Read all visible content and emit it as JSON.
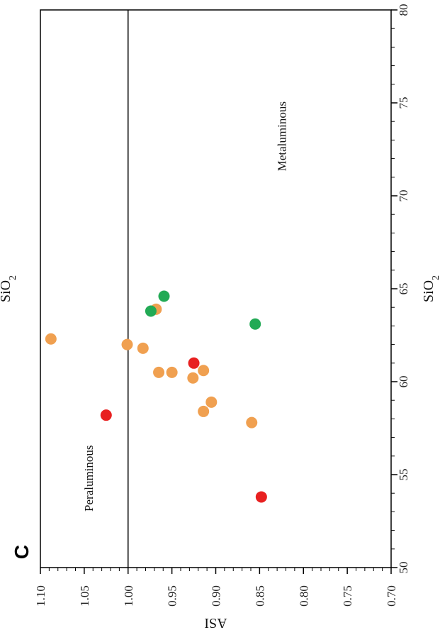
{
  "chart_data": {
    "type": "scatter",
    "panel_label": "C",
    "top_label": "SiO2",
    "xlabel": "SiO2",
    "ylabel": "ASI",
    "xlim": [
      50,
      80
    ],
    "ylim": [
      0.7,
      1.1
    ],
    "x_ticks": [
      50,
      55,
      60,
      65,
      70,
      75,
      80
    ],
    "y_ticks": [
      0.7,
      0.75,
      0.8,
      0.85,
      0.9,
      0.95,
      1.0,
      1.05,
      1.1
    ],
    "x_tick_labels": [
      "50",
      "55",
      "60",
      "65",
      "70",
      "75",
      "80"
    ],
    "y_tick_labels": [
      "0.70",
      "0.75",
      "0.80",
      "0.85",
      "0.90",
      "0.95",
      "1.00",
      "1.05",
      "1.10"
    ],
    "reference_line": {
      "asi": 1.0
    },
    "regions": [
      {
        "label": "Peraluminous",
        "x": 54.8,
        "y": 1.04
      },
      {
        "label": "Metaluminous",
        "x": 73.2,
        "y": 0.82
      }
    ],
    "grid": false,
    "series": [
      {
        "color": "#f0a050",
        "points": [
          [
            62.3,
            1.088
          ],
          [
            62.0,
            1.001
          ],
          [
            61.8,
            0.983
          ],
          [
            60.5,
            0.965
          ],
          [
            60.5,
            0.95
          ],
          [
            60.2,
            0.926
          ],
          [
            60.6,
            0.914
          ],
          [
            58.4,
            0.914
          ],
          [
            58.9,
            0.905
          ],
          [
            63.9,
            0.968
          ],
          [
            57.8,
            0.859
          ]
        ]
      },
      {
        "color": "#22aa55",
        "points": [
          [
            64.6,
            0.959
          ],
          [
            63.8,
            0.974
          ],
          [
            63.1,
            0.855
          ]
        ]
      },
      {
        "color": "#e82020",
        "points": [
          [
            58.2,
            1.025
          ],
          [
            61.0,
            0.925
          ],
          [
            53.8,
            0.848
          ]
        ]
      }
    ]
  }
}
